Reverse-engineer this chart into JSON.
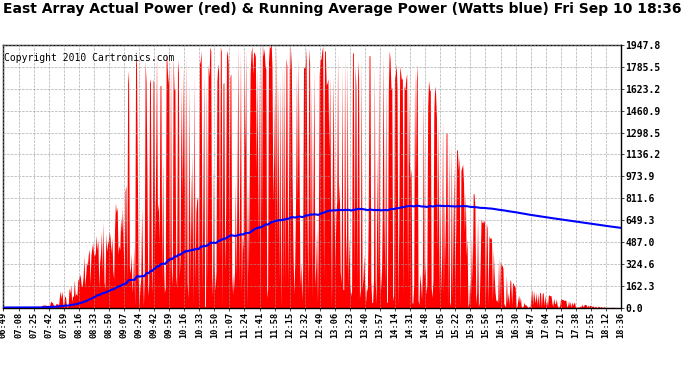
{
  "title": "East Array Actual Power (red) & Running Average Power (Watts blue) Fri Sep 10 18:36",
  "copyright": "Copyright 2010 Cartronics.com",
  "ylabel_right_ticks": [
    0.0,
    162.3,
    324.6,
    487.0,
    649.3,
    811.6,
    973.9,
    1136.2,
    1298.5,
    1460.9,
    1623.2,
    1785.5,
    1947.8
  ],
  "ymax": 1947.8,
  "ymin": 0.0,
  "background_color": "#ffffff",
  "plot_bg_color": "#ffffff",
  "bar_color": "#ff0000",
  "avg_color": "#0000ff",
  "grid_color": "#999999",
  "title_fontsize": 10,
  "copyright_fontsize": 7,
  "time_labels": [
    "06:49",
    "07:08",
    "07:25",
    "07:42",
    "07:59",
    "08:16",
    "08:33",
    "08:50",
    "09:07",
    "09:24",
    "09:42",
    "09:59",
    "10:16",
    "10:33",
    "10:50",
    "11:07",
    "11:24",
    "11:41",
    "11:58",
    "12:15",
    "12:32",
    "12:49",
    "13:06",
    "13:23",
    "13:40",
    "13:57",
    "14:14",
    "14:31",
    "14:48",
    "15:05",
    "15:22",
    "15:39",
    "15:56",
    "16:13",
    "16:30",
    "16:47",
    "17:04",
    "17:21",
    "17:38",
    "17:55",
    "18:12",
    "18:36"
  ]
}
